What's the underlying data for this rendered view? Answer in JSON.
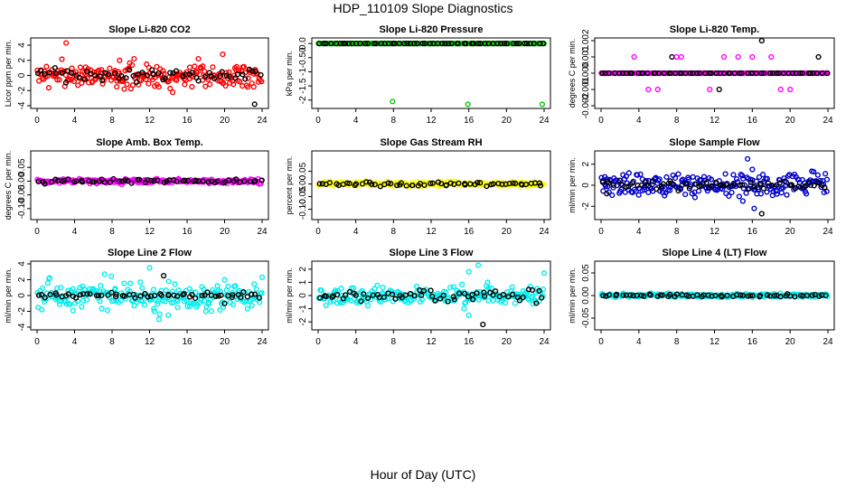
{
  "page": {
    "title": "HDP_110109  Slope Diagnostics",
    "xlabel": "Hour of Day (UTC)"
  },
  "chart_data": [
    {
      "type": "scatter",
      "title": "Slope Li-820 CO2",
      "ylabel": "Licor ppm per min.",
      "xlim": [
        0,
        24
      ],
      "ylim": [
        -4,
        4.6
      ],
      "xticks": [
        0,
        4,
        8,
        12,
        16,
        20,
        24
      ],
      "yticks": [
        -4,
        -2,
        0,
        2,
        4
      ],
      "series": [
        {
          "color": "#ff0000",
          "spread": 0.2
        },
        {
          "color": "#000000",
          "spread": 0.12
        }
      ],
      "features": [
        {
          "x": 8.8,
          "y": 2.0
        },
        {
          "x": 8.5,
          "y": -1.5
        },
        {
          "x": 3.1,
          "y": 4.3
        },
        {
          "x": 23.2,
          "y": -3.8
        },
        {
          "x": 19.8,
          "y": 2.8
        },
        {
          "x": 12.8,
          "y": -1.2
        }
      ]
    },
    {
      "type": "scatter",
      "title": "Slope Li-820 Pressure",
      "ylabel": "kPa per min.",
      "xlim": [
        0,
        24
      ],
      "ylim": [
        -2.2,
        0.1
      ],
      "xticks": [
        0,
        4,
        8,
        12,
        16,
        20,
        24
      ],
      "yticks": [
        -2.0,
        -1.5,
        -1.0,
        -0.5,
        0.0
      ],
      "series": [
        {
          "color": "#00cc00",
          "spread": 0.0
        },
        {
          "color": "#000000",
          "spread": 0.0
        }
      ],
      "features": [
        {
          "x": 7.9,
          "y": -2.05
        },
        {
          "x": 15.9,
          "y": -2.15
        },
        {
          "x": 23.8,
          "y": -2.15
        }
      ]
    },
    {
      "type": "scatter",
      "title": "Slope Li-820 Temp.",
      "ylabel": "degrees C per min.",
      "xlim": [
        0,
        24
      ],
      "ylim": [
        -0.002,
        0.002
      ],
      "xticks": [
        0,
        4,
        8,
        12,
        16,
        20,
        24
      ],
      "yticks": [
        -0.002,
        -0.001,
        0.0,
        0.001,
        0.002
      ],
      "series": [
        {
          "color": "#ff00ff",
          "spread": 0.0
        },
        {
          "color": "#000000",
          "spread": 0.0
        }
      ],
      "features": [
        {
          "x": 3.5,
          "y": 0.001
        },
        {
          "x": 5,
          "y": -0.001
        },
        {
          "x": 6,
          "y": -0.001
        },
        {
          "x": 7.5,
          "y": 0.001
        },
        {
          "x": 8,
          "y": 0.001
        },
        {
          "x": 8.5,
          "y": 0.001
        },
        {
          "x": 11.5,
          "y": -0.001
        },
        {
          "x": 12.5,
          "y": -0.001
        },
        {
          "x": 13,
          "y": 0.001
        },
        {
          "x": 14.5,
          "y": 0.001
        },
        {
          "x": 16,
          "y": 0.001
        },
        {
          "x": 17,
          "y": 0.002
        },
        {
          "x": 18,
          "y": 0.001
        },
        {
          "x": 19,
          "y": -0.001
        },
        {
          "x": 20,
          "y": -0.001
        },
        {
          "x": 23,
          "y": 0.001
        }
      ]
    },
    {
      "type": "scatter",
      "title": "Slope Amb. Box Temp.",
      "ylabel": "degrees C per min.",
      "xlim": [
        0,
        24
      ],
      "ylim": [
        -0.13,
        0.1
      ],
      "xticks": [
        0,
        4,
        8,
        12,
        16,
        20,
        24
      ],
      "yticks": [
        -0.1,
        -0.05,
        0.0,
        0.05
      ],
      "series": [
        {
          "color": "#ff00ff",
          "spread": 0.04
        },
        {
          "color": "#000000",
          "spread": 0.03
        }
      ],
      "features": []
    },
    {
      "type": "scatter",
      "title": "Slope Gas Stream RH",
      "ylabel": "percent per min.",
      "xlim": [
        0,
        24
      ],
      "ylim": [
        -0.13,
        0.12
      ],
      "xticks": [
        0,
        4,
        8,
        12,
        16,
        20,
        24
      ],
      "yticks": [
        -0.1,
        -0.05,
        0.0,
        0.05
      ],
      "series": [
        {
          "color": "#ffff00",
          "spread": 0.04
        },
        {
          "color": "#000000",
          "spread": 0.035
        }
      ],
      "features": []
    },
    {
      "type": "scatter",
      "title": "Slope Sample Flow",
      "ylabel": "ml/min per min.",
      "xlim": [
        0,
        24
      ],
      "ylim": [
        -3,
        3
      ],
      "xticks": [
        0,
        4,
        8,
        12,
        16,
        20,
        24
      ],
      "yticks": [
        -2,
        0,
        2
      ],
      "series": [
        {
          "color": "#0000cc",
          "spread": 0.2
        },
        {
          "color": "#000000",
          "spread": 0.1
        }
      ],
      "features": [
        {
          "x": 15.5,
          "y": 2.5
        },
        {
          "x": 16,
          "y": 1.5
        },
        {
          "x": 16.2,
          "y": -2.2
        },
        {
          "x": 17,
          "y": -2.7
        },
        {
          "x": 15,
          "y": -1.5
        },
        {
          "x": 14,
          "y": 1.0
        },
        {
          "x": 0.4,
          "y": 0.8
        },
        {
          "x": 0.6,
          "y": -0.8
        }
      ]
    },
    {
      "type": "scatter",
      "title": "Slope Line 2 Flow",
      "ylabel": "ml/min per min.",
      "xlim": [
        0,
        24
      ],
      "ylim": [
        -4,
        4
      ],
      "xticks": [
        0,
        4,
        8,
        12,
        16,
        20,
        24
      ],
      "yticks": [
        -4,
        -2,
        0,
        2,
        4
      ],
      "series": [
        {
          "color": "#00eeee",
          "spread": 0.25
        },
        {
          "color": "#000000",
          "spread": 0.05
        }
      ],
      "features": [
        {
          "x": 12,
          "y": 3.5
        },
        {
          "x": 12.5,
          "y": -2.0
        },
        {
          "x": 13,
          "y": -3.0
        },
        {
          "x": 13.5,
          "y": 2.5
        },
        {
          "x": 14,
          "y": -2.5
        },
        {
          "x": 15,
          "y": -1.5
        },
        {
          "x": 18,
          "y": -2.0
        },
        {
          "x": 20,
          "y": -1.0
        },
        {
          "x": 24,
          "y": 2.3
        }
      ]
    },
    {
      "type": "scatter",
      "title": "Slope Line 3 Flow",
      "ylabel": "ml/min per min.",
      "xlim": [
        0,
        24
      ],
      "ylim": [
        -2.4,
        2.4
      ],
      "xticks": [
        0,
        4,
        8,
        12,
        16,
        20,
        24
      ],
      "yticks": [
        -2,
        -1,
        0,
        1,
        2
      ],
      "series": [
        {
          "color": "#00eeee",
          "spread": 0.15
        },
        {
          "color": "#000000",
          "spread": 0.1
        }
      ],
      "features": [
        {
          "x": 16,
          "y": 1.8
        },
        {
          "x": 16,
          "y": -1.5
        },
        {
          "x": 17,
          "y": 2.3
        },
        {
          "x": 17.5,
          "y": -2.2
        },
        {
          "x": 18,
          "y": 1.0
        },
        {
          "x": 24,
          "y": 1.7
        },
        {
          "x": 15.5,
          "y": -1.0
        }
      ]
    },
    {
      "type": "scatter",
      "title": "Slope Line 4 (LT) Flow",
      "ylabel": "ml/min per min.",
      "xlim": [
        0,
        24
      ],
      "ylim": [
        -0.07,
        0.07
      ],
      "xticks": [
        0,
        4,
        8,
        12,
        16,
        20,
        24
      ],
      "yticks": [
        -0.05,
        0.0,
        0.05
      ],
      "series": [
        {
          "color": "#00eeee",
          "spread": 0.028
        },
        {
          "color": "#000000",
          "spread": 0.025
        }
      ],
      "features": []
    }
  ]
}
